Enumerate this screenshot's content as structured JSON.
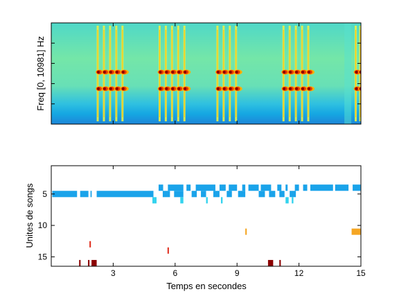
{
  "chart_data": [
    {
      "type": "heatmap",
      "ylabel": "Freq [0, 10981] Hz",
      "colormap": [
        "#1e7fd6",
        "#00b7e8",
        "#57e2d0",
        "#a7f07a",
        "#e8f04a",
        "#ffb000",
        "#e83c00",
        "#8a0000"
      ],
      "calls": [
        {
          "t": 2.25,
          "f": [
            0.48,
            0.3
          ]
        },
        {
          "t": 2.55,
          "f": [
            0.48,
            0.3
          ]
        },
        {
          "t": 2.85,
          "f": [
            0.48,
            0.3
          ]
        },
        {
          "t": 3.15,
          "f": [
            0.48,
            0.3
          ]
        },
        {
          "t": 3.45,
          "f": [
            0.48,
            0.3
          ]
        },
        {
          "t": 5.25,
          "f": [
            0.48,
            0.3
          ]
        },
        {
          "t": 5.55,
          "f": [
            0.48,
            0.3
          ]
        },
        {
          "t": 5.85,
          "f": [
            0.48,
            0.3
          ]
        },
        {
          "t": 6.15,
          "f": [
            0.48,
            0.3
          ]
        },
        {
          "t": 6.45,
          "f": [
            0.48,
            0.3
          ]
        },
        {
          "t": 8.05,
          "f": [
            0.48,
            0.3
          ]
        },
        {
          "t": 8.35,
          "f": [
            0.48,
            0.3
          ]
        },
        {
          "t": 8.65,
          "f": [
            0.48,
            0.3
          ]
        },
        {
          "t": 8.95,
          "f": [
            0.48,
            0.3
          ]
        },
        {
          "t": 11.25,
          "f": [
            0.48,
            0.3
          ]
        },
        {
          "t": 11.55,
          "f": [
            0.48,
            0.3
          ]
        },
        {
          "t": 11.85,
          "f": [
            0.48,
            0.3
          ]
        },
        {
          "t": 12.15,
          "f": [
            0.48,
            0.3
          ]
        },
        {
          "t": 12.45,
          "f": [
            0.48,
            0.3
          ]
        },
        {
          "t": 14.75,
          "f": [
            0.45,
            0.3
          ]
        },
        {
          "t": 14.97,
          "f": [
            0.3,
            0.3
          ]
        }
      ],
      "xlim": [
        0,
        15
      ]
    },
    {
      "type": "scatter",
      "xlabel": "Temps en secondes",
      "ylabel": "Unites de songs",
      "xlim": [
        0,
        15
      ],
      "ylim": [
        16.5,
        0.5
      ],
      "xticks": [
        3,
        6,
        9,
        12,
        15
      ],
      "yticks": [
        5,
        10,
        15
      ],
      "segments": [
        {
          "unit": 5,
          "start": 0.05,
          "end": 1.25,
          "color": "#1aa3ea"
        },
        {
          "unit": 5,
          "start": 1.4,
          "end": 1.8,
          "color": "#1aa3ea"
        },
        {
          "unit": 5,
          "start": 1.9,
          "end": 1.96,
          "color": "#1aa3ea"
        },
        {
          "unit": 5,
          "start": 2.2,
          "end": 4.95,
          "color": "#1aa3ea"
        },
        {
          "unit": 5,
          "start": 5.4,
          "end": 5.75,
          "color": "#1aa3ea"
        },
        {
          "unit": 5,
          "start": 5.95,
          "end": 6.4,
          "color": "#1aa3ea"
        },
        {
          "unit": 5,
          "start": 6.8,
          "end": 7.05,
          "color": "#1aa3ea"
        },
        {
          "unit": 5,
          "start": 7.25,
          "end": 7.5,
          "color": "#1aa3ea"
        },
        {
          "unit": 5,
          "start": 7.85,
          "end": 8.15,
          "color": "#1aa3ea"
        },
        {
          "unit": 5,
          "start": 8.5,
          "end": 8.75,
          "color": "#1aa3ea"
        },
        {
          "unit": 5,
          "start": 9.05,
          "end": 9.4,
          "color": "#1aa3ea"
        },
        {
          "unit": 5,
          "start": 10.05,
          "end": 10.35,
          "color": "#1aa3ea"
        },
        {
          "unit": 5,
          "start": 10.55,
          "end": 10.85,
          "color": "#1aa3ea"
        },
        {
          "unit": 5,
          "start": 11.05,
          "end": 11.3,
          "color": "#1aa3ea"
        },
        {
          "unit": 5,
          "start": 11.55,
          "end": 11.85,
          "color": "#1aa3ea"
        },
        {
          "unit": 4,
          "start": 5.2,
          "end": 5.42,
          "color": "#1aa3ea"
        },
        {
          "unit": 4,
          "start": 5.65,
          "end": 6.4,
          "color": "#1aa3ea"
        },
        {
          "unit": 4,
          "start": 6.55,
          "end": 6.75,
          "color": "#1aa3ea"
        },
        {
          "unit": 4,
          "start": 7.0,
          "end": 7.95,
          "color": "#1aa3ea"
        },
        {
          "unit": 4,
          "start": 8.15,
          "end": 8.45,
          "color": "#1aa3ea"
        },
        {
          "unit": 4,
          "start": 8.6,
          "end": 9.0,
          "color": "#1aa3ea"
        },
        {
          "unit": 4,
          "start": 9.25,
          "end": 9.4,
          "color": "#1aa3ea"
        },
        {
          "unit": 4,
          "start": 9.55,
          "end": 10.05,
          "color": "#1aa3ea"
        },
        {
          "unit": 4,
          "start": 10.15,
          "end": 10.65,
          "color": "#1aa3ea"
        },
        {
          "unit": 4,
          "start": 10.95,
          "end": 11.15,
          "color": "#1aa3ea"
        },
        {
          "unit": 4,
          "start": 11.35,
          "end": 11.45,
          "color": "#1aa3ea"
        },
        {
          "unit": 4,
          "start": 11.8,
          "end": 12.0,
          "color": "#1aa3ea"
        },
        {
          "unit": 4,
          "start": 12.2,
          "end": 12.4,
          "color": "#1aa3ea"
        },
        {
          "unit": 4,
          "start": 12.55,
          "end": 13.65,
          "color": "#1aa3ea"
        },
        {
          "unit": 4,
          "start": 13.75,
          "end": 14.4,
          "color": "#1aa3ea"
        },
        {
          "unit": 4,
          "start": 14.6,
          "end": 14.98,
          "color": "#1aa3ea"
        },
        {
          "unit": 6,
          "start": 4.9,
          "end": 5.1,
          "color": "#33d3ee"
        },
        {
          "unit": 6,
          "start": 6.25,
          "end": 6.4,
          "color": "#33d3ee"
        },
        {
          "unit": 6,
          "start": 7.5,
          "end": 7.58,
          "color": "#33d3ee"
        },
        {
          "unit": 6,
          "start": 8.22,
          "end": 8.3,
          "color": "#33d3ee"
        },
        {
          "unit": 6,
          "start": 11.35,
          "end": 11.5,
          "color": "#33d3ee"
        },
        {
          "unit": 6,
          "start": 11.65,
          "end": 11.73,
          "color": "#33d3ee"
        },
        {
          "unit": 11,
          "start": 9.4,
          "end": 9.47,
          "color": "#f5a623"
        },
        {
          "unit": 11,
          "start": 14.55,
          "end": 15.0,
          "color": "#f5a623"
        },
        {
          "unit": 13,
          "start": 1.85,
          "end": 1.92,
          "color": "#e03020"
        },
        {
          "unit": 14,
          "start": 5.63,
          "end": 5.7,
          "color": "#e03020"
        },
        {
          "unit": 16,
          "start": 1.35,
          "end": 1.42,
          "color": "#8b0000"
        },
        {
          "unit": 16,
          "start": 1.78,
          "end": 1.85,
          "color": "#8b0000"
        },
        {
          "unit": 16,
          "start": 1.95,
          "end": 2.2,
          "color": "#8b0000"
        },
        {
          "unit": 16,
          "start": 10.5,
          "end": 10.75,
          "color": "#8b0000"
        },
        {
          "unit": 16,
          "start": 11.05,
          "end": 11.12,
          "color": "#8b0000"
        }
      ]
    }
  ]
}
